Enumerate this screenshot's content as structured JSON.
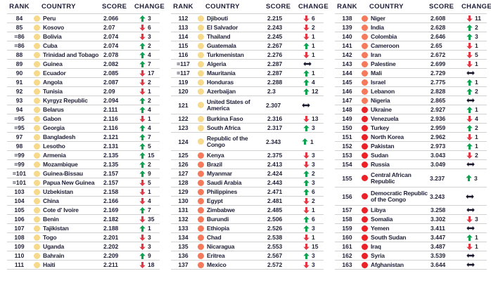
{
  "headers": {
    "rank": "RANK",
    "country": "COUNTRY",
    "score": "SCORE",
    "change": "CHANGE"
  },
  "colors": {
    "text": "#23233a",
    "header_text": "#1e1e38",
    "row_line": "#d2d2d2",
    "tier_yellow": "#f6d98b",
    "tier_orange": "#f47a5b",
    "tier_red": "#ec2127",
    "change_up": "#0aa14f",
    "change_down": "#e23744",
    "change_same": "#17172b"
  },
  "icons": {
    "up": "change-up-icon",
    "down": "change-down-icon",
    "same": "change-no-change-icon",
    "dot": "score-tier-dot-icon"
  },
  "columns": [
    {
      "rows": [
        {
          "rank": "84",
          "country": "Peru",
          "score": "2.066",
          "tier": "yellow",
          "change": {
            "dir": "up",
            "value": "3"
          }
        },
        {
          "rank": "85",
          "country": "Kosovo",
          "score": "2.07",
          "tier": "yellow",
          "change": {
            "dir": "down",
            "value": "6"
          }
        },
        {
          "rank": "=86",
          "country": "Bolivia",
          "score": "2.074",
          "tier": "yellow",
          "change": {
            "dir": "down",
            "value": "3"
          }
        },
        {
          "rank": "=86",
          "country": "Cuba",
          "score": "2.074",
          "tier": "yellow",
          "change": {
            "dir": "up",
            "value": "2"
          }
        },
        {
          "rank": "88",
          "country": "Trinidad and Tobago",
          "score": "2.078",
          "tier": "yellow",
          "change": {
            "dir": "up",
            "value": "4"
          }
        },
        {
          "rank": "89",
          "country": "Guinea",
          "score": "2.082",
          "tier": "yellow",
          "change": {
            "dir": "up",
            "value": "7"
          }
        },
        {
          "rank": "90",
          "country": "Ecuador",
          "score": "2.085",
          "tier": "yellow",
          "change": {
            "dir": "down",
            "value": "17"
          }
        },
        {
          "rank": "91",
          "country": "Angola",
          "score": "2.087",
          "tier": "yellow",
          "change": {
            "dir": "down",
            "value": "2"
          }
        },
        {
          "rank": "92",
          "country": "Tunisia",
          "score": "2.09",
          "tier": "yellow",
          "change": {
            "dir": "down",
            "value": "1"
          }
        },
        {
          "rank": "93",
          "country": "Kyrgyz Republic",
          "score": "2.094",
          "tier": "yellow",
          "change": {
            "dir": "up",
            "value": "2"
          }
        },
        {
          "rank": "94",
          "country": "Belarus",
          "score": "2.111",
          "tier": "yellow",
          "change": {
            "dir": "up",
            "value": "4"
          }
        },
        {
          "rank": "=95",
          "country": "Gabon",
          "score": "2.116",
          "tier": "yellow",
          "change": {
            "dir": "down",
            "value": "1"
          }
        },
        {
          "rank": "=95",
          "country": "Georgia",
          "score": "2.116",
          "tier": "yellow",
          "change": {
            "dir": "up",
            "value": "4"
          }
        },
        {
          "rank": "97",
          "country": "Bangladesh",
          "score": "2.121",
          "tier": "yellow",
          "change": {
            "dir": "up",
            "value": "7"
          }
        },
        {
          "rank": "98",
          "country": "Lesotho",
          "score": "2.131",
          "tier": "yellow",
          "change": {
            "dir": "up",
            "value": "5"
          }
        },
        {
          "rank": "=99",
          "country": "Armenia",
          "score": "2.135",
          "tier": "yellow",
          "change": {
            "dir": "up",
            "value": "15"
          }
        },
        {
          "rank": "=99",
          "country": "Mozambique",
          "score": "2.135",
          "tier": "yellow",
          "change": {
            "dir": "up",
            "value": "2"
          }
        },
        {
          "rank": "=101",
          "country": "Guinea-Bissau",
          "score": "2.157",
          "tier": "yellow",
          "change": {
            "dir": "up",
            "value": "9"
          }
        },
        {
          "rank": "=101",
          "country": "Papua New Guinea",
          "score": "2.157",
          "tier": "yellow",
          "change": {
            "dir": "down",
            "value": "5"
          }
        },
        {
          "rank": "103",
          "country": "Uzbekistan",
          "score": "2.158",
          "tier": "yellow",
          "change": {
            "dir": "down",
            "value": "1"
          }
        },
        {
          "rank": "104",
          "country": "China",
          "score": "2.166",
          "tier": "yellow",
          "change": {
            "dir": "down",
            "value": "4"
          }
        },
        {
          "rank": "105",
          "country": "Cote d' Ivoire",
          "score": "2.169",
          "tier": "yellow",
          "change": {
            "dir": "up",
            "value": "7"
          }
        },
        {
          "rank": "106",
          "country": "Benin",
          "score": "2.182",
          "tier": "yellow",
          "change": {
            "dir": "down",
            "value": "35"
          }
        },
        {
          "rank": "107",
          "country": "Tajikistan",
          "score": "2.188",
          "tier": "yellow",
          "change": {
            "dir": "up",
            "value": "1"
          }
        },
        {
          "rank": "108",
          "country": "Togo",
          "score": "2.201",
          "tier": "yellow",
          "change": {
            "dir": "down",
            "value": "3"
          }
        },
        {
          "rank": "109",
          "country": "Uganda",
          "score": "2.202",
          "tier": "yellow",
          "change": {
            "dir": "down",
            "value": "3"
          }
        },
        {
          "rank": "110",
          "country": "Bahrain",
          "score": "2.209",
          "tier": "yellow",
          "change": {
            "dir": "up",
            "value": "9"
          }
        },
        {
          "rank": "111",
          "country": "Haiti",
          "score": "2.211",
          "tier": "yellow",
          "change": {
            "dir": "down",
            "value": "18"
          }
        }
      ]
    },
    {
      "rows": [
        {
          "rank": "112",
          "country": "Djibouti",
          "score": "2.215",
          "tier": "yellow",
          "change": {
            "dir": "down",
            "value": "6"
          }
        },
        {
          "rank": "113",
          "country": "El Salvador",
          "score": "2.243",
          "tier": "yellow",
          "change": {
            "dir": "down",
            "value": "2"
          }
        },
        {
          "rank": "114",
          "country": "Thailand",
          "score": "2.245",
          "tier": "yellow",
          "change": {
            "dir": "down",
            "value": "1"
          }
        },
        {
          "rank": "115",
          "country": "Guatemala",
          "score": "2.267",
          "tier": "yellow",
          "change": {
            "dir": "up",
            "value": "1"
          }
        },
        {
          "rank": "116",
          "country": "Turkmenistan",
          "score": "2.276",
          "tier": "yellow",
          "change": {
            "dir": "down",
            "value": "1"
          }
        },
        {
          "rank": "=117",
          "country": "Algeria",
          "score": "2.287",
          "tier": "yellow",
          "change": {
            "dir": "same",
            "value": ""
          }
        },
        {
          "rank": "=117",
          "country": "Mauritania",
          "score": "2.287",
          "tier": "yellow",
          "change": {
            "dir": "up",
            "value": "1"
          }
        },
        {
          "rank": "119",
          "country": "Honduras",
          "score": "2.288",
          "tier": "yellow",
          "change": {
            "dir": "up",
            "value": "4"
          }
        },
        {
          "rank": "120",
          "country": "Azerbaijan",
          "score": "2.3",
          "tier": "yellow",
          "change": {
            "dir": "up",
            "value": "12"
          }
        },
        {
          "rank": "121",
          "country": "United States of America",
          "score": "2.307",
          "tier": "yellow",
          "tall": true,
          "change": {
            "dir": "same",
            "value": ""
          }
        },
        {
          "rank": "122",
          "country": "Burkina Faso",
          "score": "2.316",
          "tier": "yellow",
          "change": {
            "dir": "down",
            "value": "13"
          }
        },
        {
          "rank": "123",
          "country": "South Africa",
          "score": "2.317",
          "tier": "yellow",
          "change": {
            "dir": "up",
            "value": "3"
          }
        },
        {
          "rank": "124",
          "country": "Republic of the Congo",
          "score": "2.343",
          "tier": "yellow",
          "tall": true,
          "change": {
            "dir": "up",
            "value": "1"
          }
        },
        {
          "rank": "125",
          "country": "Kenya",
          "score": "2.375",
          "tier": "orange",
          "change": {
            "dir": "down",
            "value": "3"
          }
        },
        {
          "rank": "126",
          "country": "Brazil",
          "score": "2.413",
          "tier": "orange",
          "change": {
            "dir": "down",
            "value": "3"
          }
        },
        {
          "rank": "127",
          "country": "Myanmar",
          "score": "2.424",
          "tier": "orange",
          "change": {
            "dir": "up",
            "value": "2"
          }
        },
        {
          "rank": "128",
          "country": "Saudi Arabia",
          "score": "2.443",
          "tier": "orange",
          "change": {
            "dir": "up",
            "value": "3"
          }
        },
        {
          "rank": "129",
          "country": "Philippines",
          "score": "2.471",
          "tier": "orange",
          "change": {
            "dir": "up",
            "value": "6"
          }
        },
        {
          "rank": "130",
          "country": "Egypt",
          "score": "2.481",
          "tier": "orange",
          "change": {
            "dir": "down",
            "value": "2"
          }
        },
        {
          "rank": "131",
          "country": "Zimbabwe",
          "score": "2.485",
          "tier": "orange",
          "change": {
            "dir": "down",
            "value": "1"
          }
        },
        {
          "rank": "132",
          "country": "Burundi",
          "score": "2.506",
          "tier": "orange",
          "change": {
            "dir": "up",
            "value": "6"
          }
        },
        {
          "rank": "133",
          "country": "Ethiopia",
          "score": "2.526",
          "tier": "orange",
          "change": {
            "dir": "up",
            "value": "3"
          }
        },
        {
          "rank": "134",
          "country": "Chad",
          "score": "2.538",
          "tier": "orange",
          "change": {
            "dir": "down",
            "value": "1"
          }
        },
        {
          "rank": "135",
          "country": "Nicaragua",
          "score": "2.553",
          "tier": "orange",
          "change": {
            "dir": "down",
            "value": "15"
          }
        },
        {
          "rank": "136",
          "country": "Eritrea",
          "score": "2.567",
          "tier": "orange",
          "change": {
            "dir": "up",
            "value": "3"
          }
        },
        {
          "rank": "137",
          "country": "Mexico",
          "score": "2.572",
          "tier": "orange",
          "change": {
            "dir": "down",
            "value": "3"
          }
        }
      ]
    },
    {
      "rows": [
        {
          "rank": "138",
          "country": "Niger",
          "score": "2.608",
          "tier": "orange",
          "change": {
            "dir": "down",
            "value": "11"
          }
        },
        {
          "rank": "139",
          "country": "India",
          "score": "2.628",
          "tier": "orange",
          "change": {
            "dir": "up",
            "value": "2"
          }
        },
        {
          "rank": "140",
          "country": "Colombia",
          "score": "2.646",
          "tier": "orange",
          "change": {
            "dir": "up",
            "value": "3"
          }
        },
        {
          "rank": "141",
          "country": "Cameroon",
          "score": "2.65",
          "tier": "orange",
          "change": {
            "dir": "down",
            "value": "1"
          }
        },
        {
          "rank": "142",
          "country": "Iran",
          "score": "2.672",
          "tier": "orange",
          "change": {
            "dir": "down",
            "value": "5"
          }
        },
        {
          "rank": "143",
          "country": "Palestine",
          "score": "2.699",
          "tier": "orange",
          "change": {
            "dir": "down",
            "value": "1"
          }
        },
        {
          "rank": "144",
          "country": "Mali",
          "score": "2.729",
          "tier": "orange",
          "change": {
            "dir": "same",
            "value": ""
          }
        },
        {
          "rank": "145",
          "country": "Israel",
          "score": "2.775",
          "tier": "orange",
          "change": {
            "dir": "up",
            "value": "1"
          }
        },
        {
          "rank": "146",
          "country": "Lebanon",
          "score": "2.828",
          "tier": "orange",
          "change": {
            "dir": "up",
            "value": "2"
          }
        },
        {
          "rank": "147",
          "country": "Nigeria",
          "score": "2.865",
          "tier": "orange",
          "change": {
            "dir": "same",
            "value": ""
          }
        },
        {
          "rank": "148",
          "country": "Ukraine",
          "score": "2.927",
          "tier": "red",
          "change": {
            "dir": "up",
            "value": "1"
          }
        },
        {
          "rank": "149",
          "country": "Venezuela",
          "score": "2.936",
          "tier": "red",
          "change": {
            "dir": "down",
            "value": "4"
          }
        },
        {
          "rank": "150",
          "country": "Turkey",
          "score": "2.959",
          "tier": "red",
          "change": {
            "dir": "up",
            "value": "2"
          }
        },
        {
          "rank": "151",
          "country": "North Korea",
          "score": "2.962",
          "tier": "red",
          "change": {
            "dir": "down",
            "value": "1"
          }
        },
        {
          "rank": "152",
          "country": "Pakistan",
          "score": "2.973",
          "tier": "red",
          "change": {
            "dir": "up",
            "value": "1"
          }
        },
        {
          "rank": "153",
          "country": "Sudan",
          "score": "3.043",
          "tier": "red",
          "change": {
            "dir": "down",
            "value": "2"
          }
        },
        {
          "rank": "154",
          "country": "Russia",
          "score": "3.049",
          "tier": "red",
          "change": {
            "dir": "same",
            "value": ""
          }
        },
        {
          "rank": "155",
          "country": "Central African Republic",
          "score": "3.237",
          "tier": "red",
          "tall": true,
          "change": {
            "dir": "up",
            "value": "3"
          }
        },
        {
          "rank": "156",
          "country": "Democratic Republic of the Congo",
          "score": "3.243",
          "tier": "red",
          "tall": true,
          "change": {
            "dir": "same",
            "value": ""
          }
        },
        {
          "rank": "157",
          "country": "Libya",
          "score": "3.258",
          "tier": "red",
          "change": {
            "dir": "same",
            "value": ""
          }
        },
        {
          "rank": "158",
          "country": "Somalia",
          "score": "3.302",
          "tier": "red",
          "change": {
            "dir": "down",
            "value": "3"
          }
        },
        {
          "rank": "159",
          "country": "Yemen",
          "score": "3.411",
          "tier": "red",
          "change": {
            "dir": "same",
            "value": ""
          }
        },
        {
          "rank": "160",
          "country": "South Sudan",
          "score": "3.447",
          "tier": "red",
          "change": {
            "dir": "up",
            "value": "1"
          }
        },
        {
          "rank": "161",
          "country": "Iraq",
          "score": "3.487",
          "tier": "red",
          "change": {
            "dir": "down",
            "value": "1"
          }
        },
        {
          "rank": "162",
          "country": "Syria",
          "score": "3.539",
          "tier": "red",
          "change": {
            "dir": "same",
            "value": ""
          }
        },
        {
          "rank": "163",
          "country": "Afghanistan",
          "score": "3.644",
          "tier": "red",
          "change": {
            "dir": "same",
            "value": ""
          }
        }
      ]
    }
  ]
}
